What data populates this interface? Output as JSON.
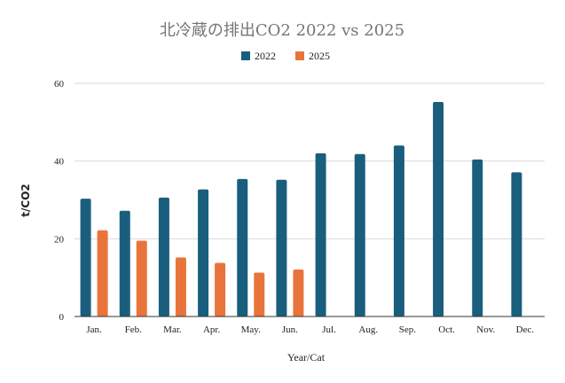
{
  "chart_data": {
    "type": "bar",
    "title": "北冷蔵の排出CO2   2022 vs 2025",
    "xlabel": "Year/Cat",
    "ylabel": "t/CO2",
    "categories": [
      "Jan.",
      "Feb.",
      "Mar.",
      "Apr.",
      "May.",
      "Jun.",
      "Jul.",
      "Aug.",
      "Sep.",
      "Oct.",
      "Nov.",
      "Dec."
    ],
    "series": [
      {
        "name": "2022",
        "color": "#1a5e7e",
        "values": [
          30.3,
          27.2,
          30.6,
          32.7,
          35.4,
          35.2,
          42.0,
          41.8,
          44.0,
          55.2,
          40.4,
          37.1
        ]
      },
      {
        "name": "2025",
        "color": "#e8743b",
        "values": [
          22.2,
          19.5,
          15.2,
          13.8,
          11.3,
          12.1,
          null,
          null,
          null,
          null,
          null,
          null
        ]
      }
    ],
    "ylim": [
      0,
      60
    ],
    "yticks": [
      0,
      20,
      40,
      60
    ],
    "grid": true,
    "legend_position": "top"
  }
}
